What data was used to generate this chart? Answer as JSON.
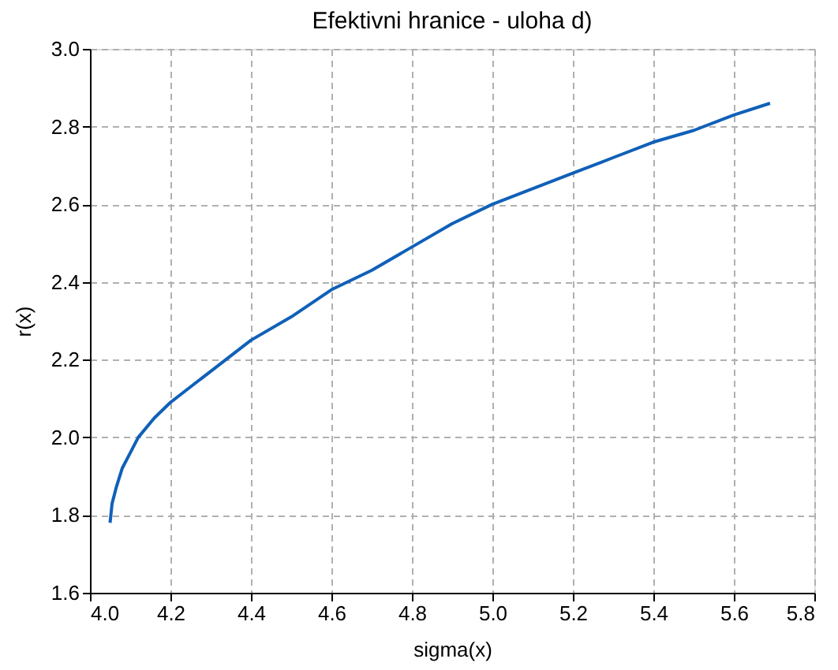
{
  "chart_data": {
    "type": "line",
    "title": "Efektivni hranice - uloha d)",
    "xlabel": "sigma(x)",
    "ylabel": "r(x)",
    "x": [
      4.05,
      4.055,
      4.065,
      4.08,
      4.1,
      4.12,
      4.16,
      4.2,
      4.25,
      4.3,
      4.4,
      4.5,
      4.6,
      4.7,
      4.8,
      4.9,
      5.0,
      5.1,
      5.2,
      5.3,
      5.4,
      5.5,
      5.6,
      5.69
    ],
    "series": [
      {
        "color": "#1060b8",
        "values": [
          1.78,
          1.83,
          1.87,
          1.92,
          1.96,
          2.0,
          2.05,
          2.09,
          2.13,
          2.17,
          2.25,
          2.31,
          2.38,
          2.43,
          2.49,
          2.55,
          2.6,
          2.64,
          2.68,
          2.72,
          2.76,
          2.79,
          2.83,
          2.86
        ]
      }
    ],
    "xlim": [
      4.0,
      5.8
    ],
    "ylim": [
      1.6,
      3.0
    ],
    "xticks": [
      {
        "value": 4.0,
        "label": "4.0"
      },
      {
        "value": 4.2,
        "label": "4.2"
      },
      {
        "value": 4.4,
        "label": "4.4"
      },
      {
        "value": 4.6,
        "label": "4.6"
      },
      {
        "value": 4.8,
        "label": "4.8"
      },
      {
        "value": 5.0,
        "label": "5.0"
      },
      {
        "value": 5.2,
        "label": "5.2"
      },
      {
        "value": 5.4,
        "label": "5.4"
      },
      {
        "value": 5.6,
        "label": "5.6"
      },
      {
        "value": 5.8,
        "label": "5.8"
      }
    ],
    "yticks": [
      {
        "value": 1.6,
        "label": "1.6"
      },
      {
        "value": 1.8,
        "label": "1.8"
      },
      {
        "value": 2.0,
        "label": "2.0"
      },
      {
        "value": 2.2,
        "label": "2.2"
      },
      {
        "value": 2.4,
        "label": "2.4"
      },
      {
        "value": 2.6,
        "label": "2.6"
      },
      {
        "value": 2.8,
        "label": "2.8"
      },
      {
        "value": 3.0,
        "label": "3.0"
      }
    ],
    "grid": true,
    "line_style": "solid",
    "marker": "none"
  }
}
